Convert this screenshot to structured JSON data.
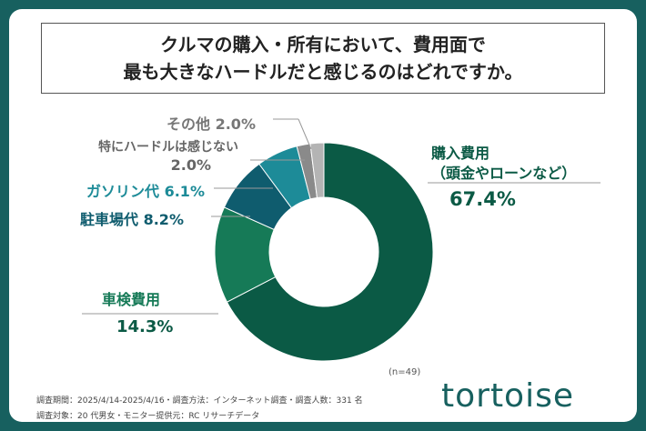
{
  "chart_data": {
    "type": "pie",
    "title": [
      "クルマの購入・所有において、費用面で",
      "最も大きなハードルだと感じるのはどれですか。"
    ],
    "categories": [
      "購入費用（頭金やローンなど）",
      "車検費用",
      "駐車場代",
      "ガソリン代",
      "特にハードルは感じない",
      "その他"
    ],
    "values": [
      67.4,
      14.3,
      8.2,
      6.1,
      2.0,
      2.0
    ],
    "colors": [
      "#0b5a45",
      "#167a57",
      "#0f5c6e",
      "#1d8b98",
      "#8a8a8a",
      "#b4b4b4"
    ],
    "labels": [
      {
        "name": "購入費用",
        "sub": "（頭金やローンなど）",
        "pct": "67.4%"
      },
      {
        "name": "車検費用",
        "pct": "14.3%"
      },
      {
        "name": "駐車場代",
        "pct": "8.2%"
      },
      {
        "name": "ガソリン代",
        "pct": "6.1%"
      },
      {
        "name": "特にハードルは感じない",
        "pct": "2.0%"
      },
      {
        "name": "その他",
        "pct": "2.0%"
      }
    ],
    "n": "(n=49)"
  },
  "footer": {
    "line1": "調査期間：2025/4/14-2025/4/16・調査方法：インターネット調査・調査人数：331 名",
    "line2": "調査対象：20 代男女・モニター提供元：RC リサーチデータ"
  },
  "logo": "tortoise"
}
